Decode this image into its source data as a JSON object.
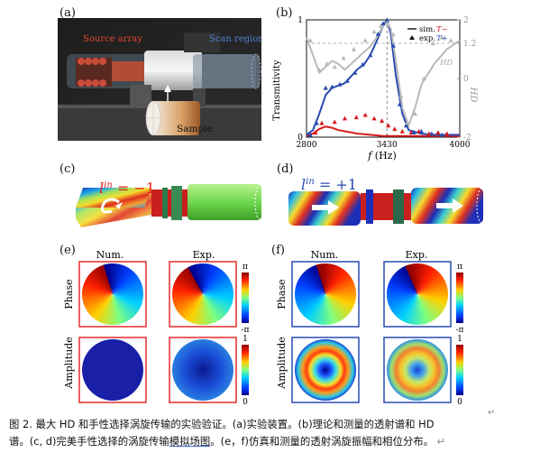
{
  "panels": {
    "a": {
      "label": "(a)",
      "source_label": "Source array",
      "scan_label": "Scan region",
      "sample_label": "Sample"
    },
    "b": {
      "label": "(b)",
      "legend": {
        "sim": "sim.",
        "exp": "exp.",
        "t_minus": "T−",
        "t_plus": "T+",
        "hd": "HD"
      }
    },
    "c": {
      "label": "(c)",
      "lin": "l",
      "lin_sup": "in",
      "lin_val": " = −1"
    },
    "d": {
      "label": "(d)",
      "lin": "l",
      "lin_sup": "in",
      "lin_val": " = +1"
    },
    "e": {
      "label": "(e)",
      "col_num": "Num.",
      "col_exp": "Exp.",
      "row_phase": "Phase",
      "row_amp": "Amplitude",
      "cb_phase_top": "π",
      "cb_phase_bot": "-π",
      "cb_amp_top": "1",
      "cb_amp_bot": "0"
    },
    "f": {
      "label": "(f)",
      "col_num": "Num.",
      "col_exp": "Exp.",
      "row_phase": "Phase",
      "row_amp": "Amplitude",
      "cb_phase_top": "π",
      "cb_phase_bot": "-π",
      "cb_amp_top": "1",
      "cb_amp_bot": "0"
    }
  },
  "caption": {
    "line1": "图 2. 最大 HD 和手性选择涡旋传输的实验验证。(a)实验装置。(b)理论和测量的透射谱和 HD",
    "line2a": "谱。(c, d)完美手性选择的涡旋传输",
    "line2u": "模拟场图",
    "line2b": "。(e，f)仿真和测量的透射涡旋振幅和相位分布。",
    "return_mark": "↵"
  },
  "chart_data": {
    "type": "line",
    "title": "",
    "xlabel": "f (Hz)",
    "ylabel": "Transmitivity",
    "y2label": "HD",
    "xlim": [
      2800,
      4000
    ],
    "ylim": [
      0,
      1
    ],
    "y2lim": [
      -2,
      2
    ],
    "xticks": [
      "2800",
      "3430",
      "4000"
    ],
    "yticks": [
      "0",
      "1"
    ],
    "y2ticks": [
      "-2",
      "0",
      "1.2",
      "2"
    ],
    "hd_reference": 1.2,
    "peak_frequency": 3430,
    "series": [
      {
        "name": "T−",
        "kind": "sim.",
        "color": "#d7191c",
        "x": [
          2800,
          2850,
          2900,
          2950,
          3000,
          3050,
          3100,
          3150,
          3200,
          3300,
          3400,
          3500,
          3600,
          3700,
          3800,
          3900,
          4000
        ],
        "y": [
          0.01,
          0.03,
          0.07,
          0.09,
          0.08,
          0.06,
          0.05,
          0.04,
          0.03,
          0.02,
          0.01,
          0.01,
          0.01,
          0.01,
          0.01,
          0.01,
          0.01
        ]
      },
      {
        "name": "T+",
        "kind": "sim.",
        "color": "#2a4bb0",
        "x": [
          2800,
          2850,
          2900,
          2950,
          3000,
          3050,
          3100,
          3150,
          3200,
          3250,
          3300,
          3350,
          3400,
          3430,
          3460,
          3500,
          3550,
          3600,
          3700,
          3800,
          3900,
          4000
        ],
        "y": [
          0.02,
          0.06,
          0.2,
          0.36,
          0.42,
          0.44,
          0.46,
          0.52,
          0.58,
          0.62,
          0.7,
          0.82,
          0.95,
          1.0,
          0.88,
          0.52,
          0.2,
          0.06,
          0.03,
          0.02,
          0.02,
          0.02
        ]
      },
      {
        "name": "HD",
        "kind": "sim.",
        "color": "#b9b9b9",
        "axis": "y2",
        "x": [
          2800,
          2900,
          3000,
          3050,
          3100,
          3200,
          3300,
          3350,
          3400,
          3430,
          3460,
          3500,
          3550,
          3600,
          3650,
          3700,
          3800,
          3900,
          4000
        ],
        "y": [
          1.4,
          0.2,
          0.6,
          0.5,
          0.3,
          0.7,
          1.1,
          1.4,
          1.8,
          1.9,
          1.7,
          0.6,
          -1.0,
          -1.6,
          -1.0,
          -0.2,
          0.5,
          1.0,
          1.3
        ]
      },
      {
        "name": "T−",
        "kind": "exp.",
        "color": "#d7191c",
        "x": [
          2870,
          2920,
          3020,
          3100,
          3190,
          3260,
          3330,
          3390,
          3440,
          3490,
          3550,
          3620,
          3680,
          3760,
          3830,
          3900
        ],
        "y": [
          0.04,
          0.12,
          0.13,
          0.16,
          0.17,
          0.19,
          0.16,
          0.14,
          0.1,
          0.07,
          0.05,
          0.04,
          0.05,
          0.03,
          0.04,
          0.03
        ]
      },
      {
        "name": "T+",
        "kind": "exp.",
        "color": "#2a4bb0",
        "x": [
          2830,
          2880,
          2950,
          3000,
          3060,
          3120,
          3180,
          3240,
          3300,
          3360,
          3400,
          3430,
          3480,
          3530,
          3580,
          3640,
          3700,
          3780,
          3860
        ],
        "y": [
          0.02,
          0.12,
          0.42,
          0.43,
          0.45,
          0.48,
          0.55,
          0.62,
          0.7,
          0.88,
          0.97,
          1.0,
          0.78,
          0.28,
          0.1,
          0.04,
          0.05,
          0.03,
          0.02
        ]
      },
      {
        "name": "HD",
        "kind": "exp.",
        "color": "#b9b9b9",
        "axis": "y2",
        "x": [
          2830,
          2900,
          2960,
          3020,
          3090,
          3170,
          3260,
          3330,
          3380,
          3430,
          3480,
          3540,
          3590,
          3650,
          3720,
          3790,
          3860,
          3930
        ],
        "y": [
          1.3,
          0.3,
          0.5,
          0.4,
          0.7,
          1.0,
          1.3,
          1.6,
          1.8,
          1.9,
          1.5,
          -0.6,
          -1.5,
          -1.2,
          0.0,
          1.2,
          1.4,
          1.3
        ]
      }
    ]
  }
}
